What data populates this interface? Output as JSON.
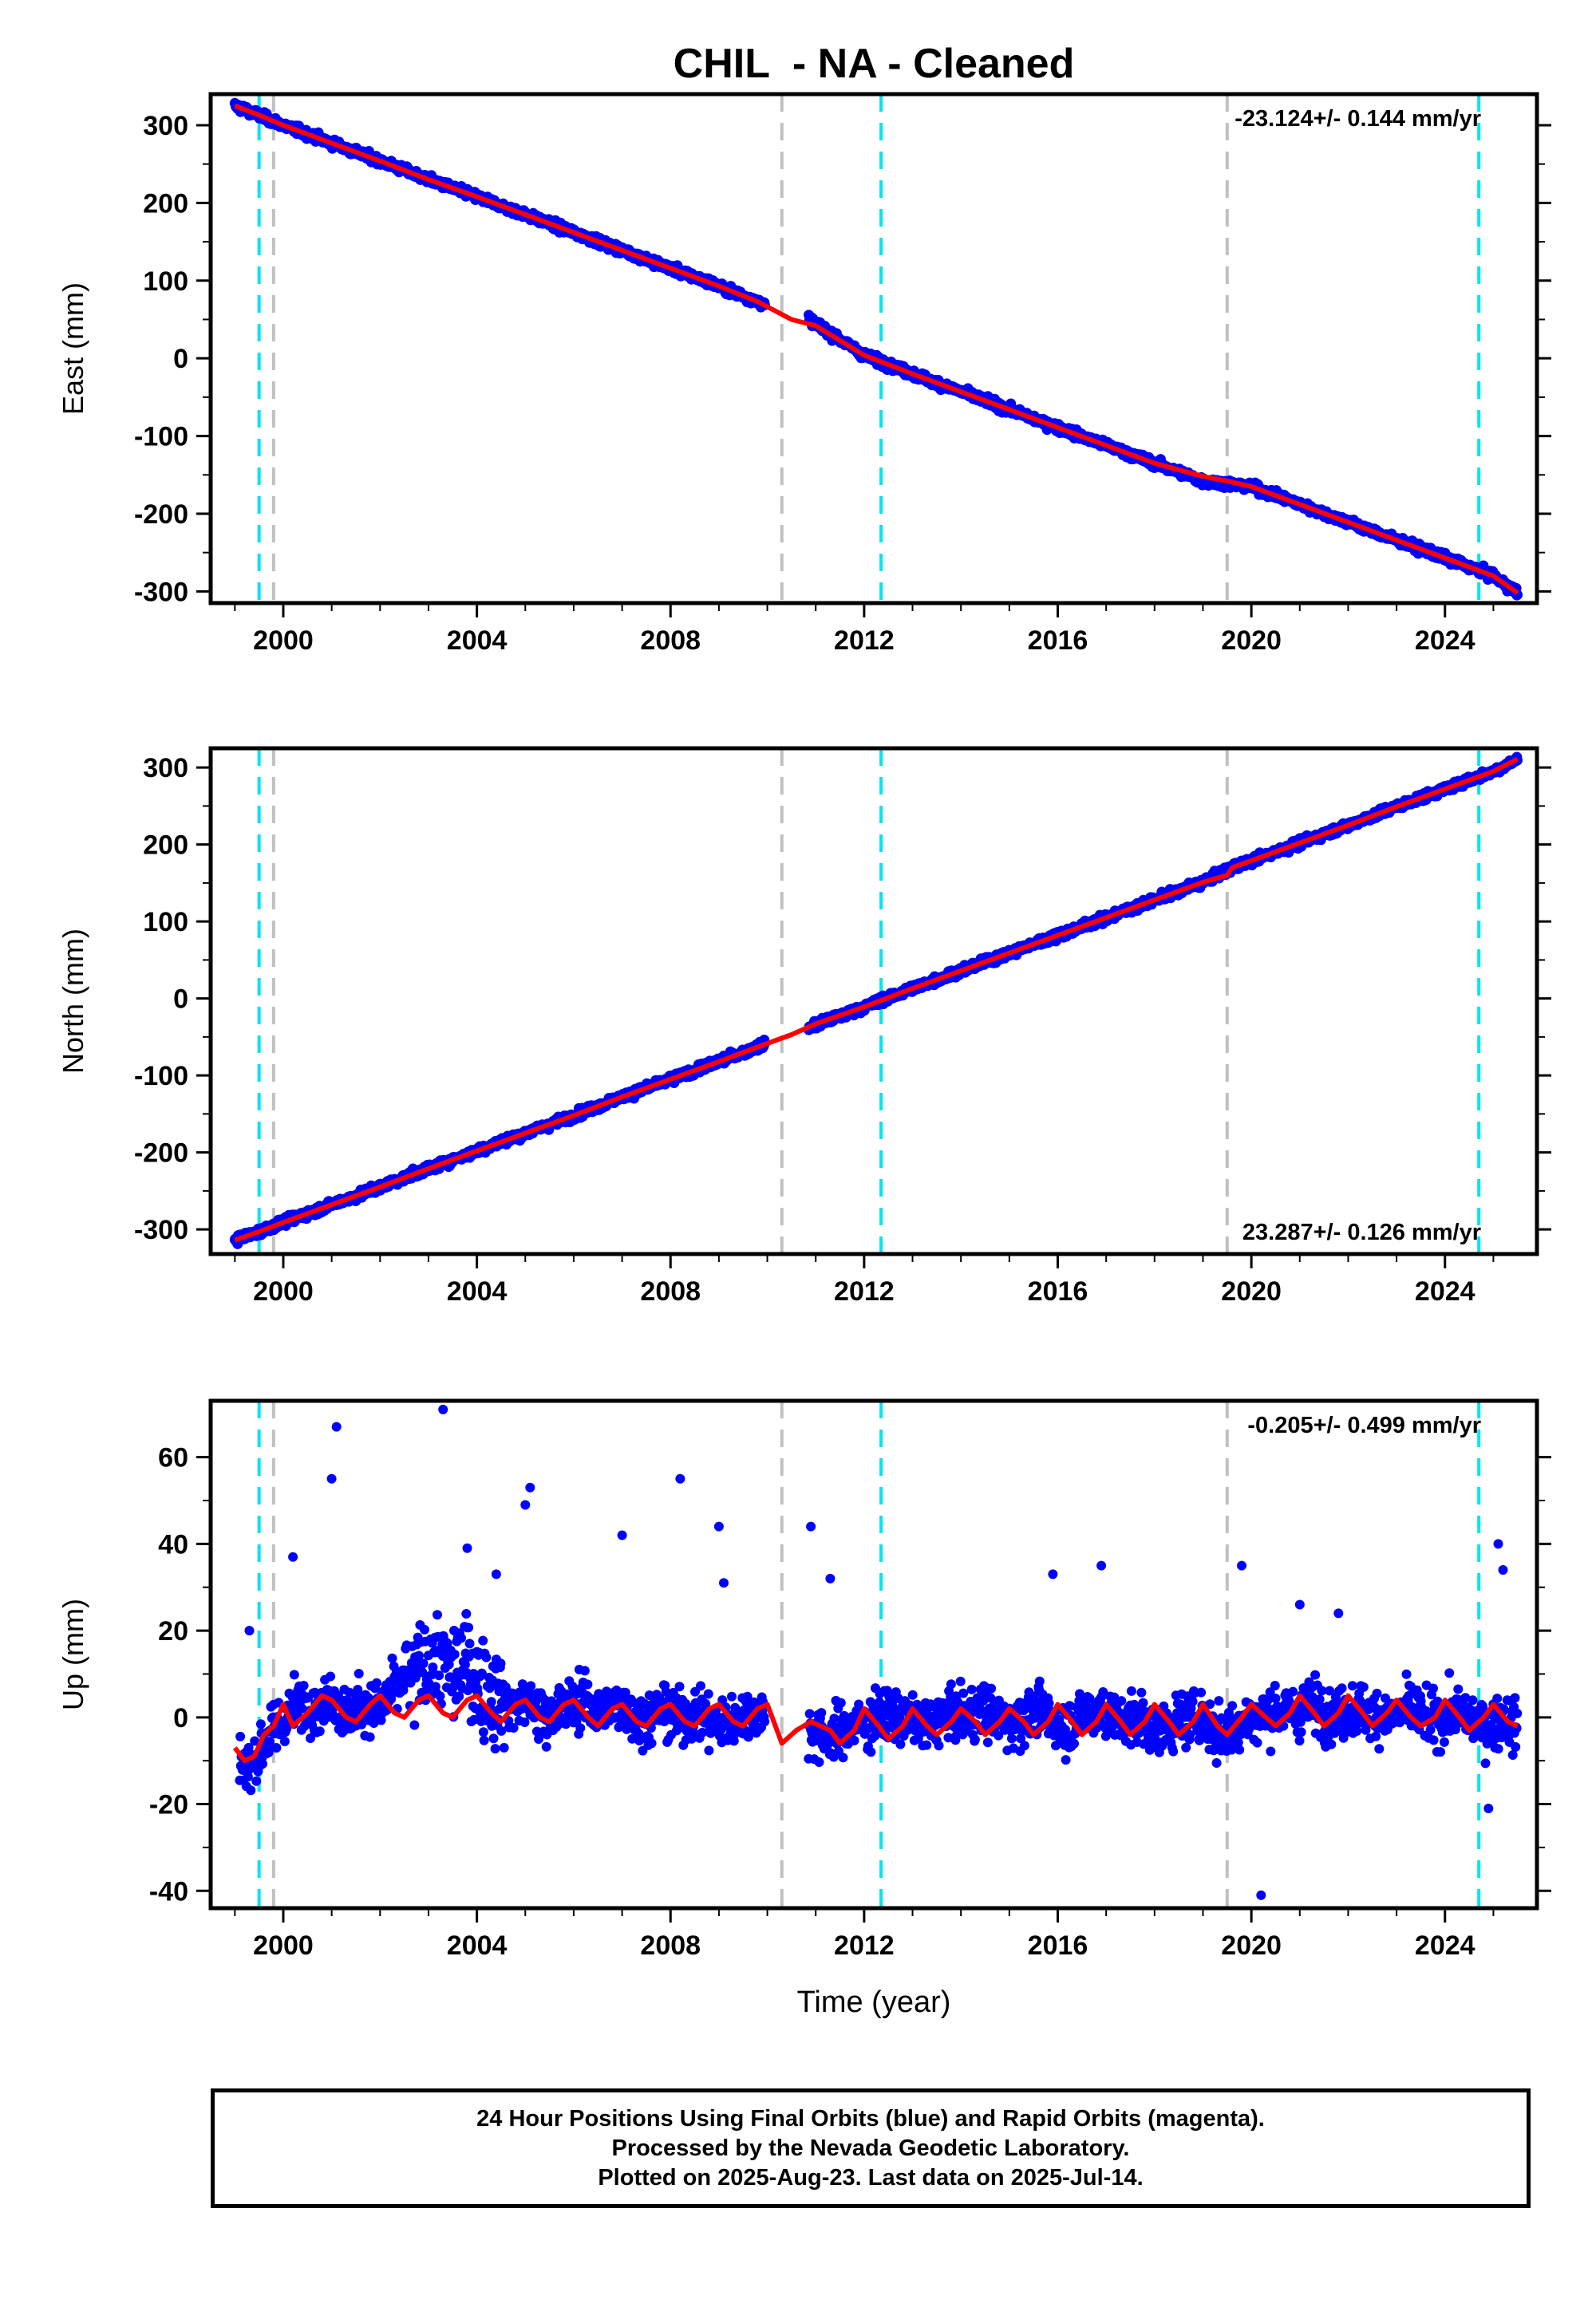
{
  "title": "CHIL  - NA - Cleaned",
  "xlabel": "Time (year)",
  "x_ticks": [
    "2000",
    "2004",
    "2008",
    "2012",
    "2016",
    "2020",
    "2024"
  ],
  "colors": {
    "final_orbits": "#0000ff",
    "model": "#ff0000",
    "antenna_change": "#00e5ee",
    "equipment_change": "#c0c0c0"
  },
  "footer": {
    "line1": "24 Hour Positions Using Final Orbits (blue) and Rapid Orbits (magenta).",
    "line2": "Processed by the Nevada Geodetic Laboratory.",
    "line3": "Plotted on 2025-Aug-23. Last data on 2025-Jul-14."
  },
  "chart_data": [
    {
      "type": "scatter",
      "id": "east",
      "ylabel": "East (mm)",
      "rate_label": "-23.124+/- 0.144 mm/yr",
      "rate_position": "top-right",
      "xlim": [
        1998.5,
        2025.9
      ],
      "ylim": [
        -315,
        340
      ],
      "y_ticks": [
        300,
        200,
        100,
        0,
        -100,
        -200,
        -300
      ],
      "x_ticks": [
        2000,
        2004,
        2008,
        2012,
        2016,
        2020,
        2024
      ],
      "series": [
        {
          "kind": "positions",
          "color": "#0000ff",
          "x": [
            1999.0,
            1999.5,
            2000.0,
            2001.0,
            2002.0,
            2003.0,
            2004.0,
            2005.0,
            2006.0,
            2007.0,
            2008.0,
            2009.0,
            2009.8,
            2010.9,
            2012.0,
            2013.0,
            2014.0,
            2015.0,
            2016.0,
            2017.0,
            2018.0,
            2019.0,
            2020.0,
            2021.0,
            2022.0,
            2023.0,
            2024.0,
            2025.0,
            2025.5
          ],
          "y": [
            325,
            313,
            300,
            277,
            254,
            230,
            208,
            185,
            162,
            139,
            116,
            93,
            73,
            49,
            4,
            -20,
            -43,
            -66,
            -89,
            -112,
            -135,
            -158,
            -165,
            -188,
            -211,
            -234,
            -257,
            -280,
            -302
          ]
        },
        {
          "kind": "model",
          "color": "#ff0000",
          "x": [
            1999.0,
            1999.5,
            2000.0,
            2001.0,
            2002.0,
            2003.0,
            2004.0,
            2005.0,
            2006.0,
            2007.0,
            2008.0,
            2009.0,
            2009.8,
            2010.5,
            2011.0,
            2012.0,
            2013.0,
            2014.0,
            2015.0,
            2016.0,
            2017.0,
            2018.0,
            2019.0,
            2019.5,
            2020.0,
            2021.0,
            2022.0,
            2023.0,
            2024.0,
            2025.0,
            2025.5
          ],
          "y": [
            325,
            313,
            300,
            277,
            254,
            230,
            208,
            185,
            162,
            139,
            116,
            93,
            73,
            50,
            42,
            4,
            -20,
            -43,
            -66,
            -89,
            -112,
            -135,
            -152,
            -158,
            -165,
            -188,
            -211,
            -234,
            -257,
            -280,
            -302
          ]
        }
      ],
      "antenna_changes": [
        1999.5,
        2012.35,
        2024.7
      ],
      "equipment_changes": [
        1999.8,
        2010.3,
        2019.5
      ]
    },
    {
      "type": "scatter",
      "id": "north",
      "ylabel": "North (mm)",
      "rate_label": "23.287+/- 0.126 mm/yr",
      "rate_position": "bottom-right",
      "xlim": [
        1998.5,
        2025.9
      ],
      "ylim": [
        -332,
        325
      ],
      "y_ticks": [
        300,
        200,
        100,
        0,
        -100,
        -200,
        -300
      ],
      "x_ticks": [
        2000,
        2004,
        2008,
        2012,
        2016,
        2020,
        2024
      ],
      "series": [
        {
          "kind": "positions",
          "color": "#0000ff",
          "x": [
            1999.0,
            1999.5,
            2000.0,
            2001.0,
            2002.0,
            2003.0,
            2004.0,
            2005.0,
            2006.0,
            2007.0,
            2008.0,
            2009.0,
            2009.8,
            2010.9,
            2012.0,
            2013.0,
            2014.0,
            2015.0,
            2016.0,
            2017.0,
            2018.0,
            2019.0,
            2019.6,
            2020.0,
            2021.0,
            2022.0,
            2023.0,
            2024.0,
            2025.0,
            2025.5
          ],
          "y": [
            -314,
            -303,
            -291,
            -268,
            -245,
            -221,
            -198,
            -175,
            -152,
            -128,
            -105,
            -82,
            -63,
            -37,
            -11,
            13,
            36,
            59,
            82,
            105,
            128,
            151,
            170,
            179,
            202,
            225,
            249,
            272,
            295,
            311
          ]
        },
        {
          "kind": "model",
          "color": "#ff0000",
          "x": [
            1999.0,
            1999.5,
            2000.0,
            2001.0,
            2002.0,
            2003.0,
            2004.0,
            2005.0,
            2006.0,
            2007.0,
            2008.0,
            2009.0,
            2009.8,
            2010.5,
            2011.0,
            2012.0,
            2013.0,
            2014.0,
            2015.0,
            2016.0,
            2017.0,
            2018.0,
            2019.0,
            2019.5,
            2019.6,
            2020.0,
            2021.0,
            2022.0,
            2023.0,
            2024.0,
            2025.0,
            2025.5
          ],
          "y": [
            -314,
            -303,
            -291,
            -268,
            -245,
            -221,
            -198,
            -175,
            -152,
            -128,
            -105,
            -82,
            -63,
            -47,
            -33,
            -11,
            13,
            36,
            59,
            82,
            105,
            128,
            151,
            160,
            170,
            179,
            202,
            225,
            249,
            272,
            295,
            311
          ]
        }
      ],
      "antenna_changes": [
        1999.5,
        2012.35,
        2024.7
      ],
      "equipment_changes": [
        1999.8,
        2010.3,
        2019.5
      ]
    },
    {
      "type": "scatter",
      "id": "up",
      "ylabel": "Up (mm)",
      "rate_label": "-0.205+/- 0.499 mm/yr",
      "rate_position": "top-right",
      "xlim": [
        1998.5,
        2025.9
      ],
      "ylim": [
        -44,
        73
      ],
      "y_ticks": [
        60,
        40,
        20,
        0,
        -20,
        -40
      ],
      "x_ticks": [
        2000,
        2004,
        2008,
        2012,
        2016,
        2020,
        2024
      ],
      "series": [
        {
          "kind": "positions",
          "color": "#0000ff",
          "x": [
            1999.1,
            1999.3,
            1999.6,
            1999.9,
            2000.1,
            2000.4,
            2000.8,
            2001.0,
            2001.3,
            2001.6,
            2002.0,
            2002.3,
            2002.7,
            2003.0,
            2003.2,
            2003.5,
            2003.8,
            2004.0,
            2004.3,
            2004.7,
            2005.0,
            2005.4,
            2005.8,
            2006.2,
            2006.6,
            2007.0,
            2007.4,
            2007.8,
            2008.2,
            2008.6,
            2009.0,
            2009.4,
            2009.8,
            2010.9,
            2011.3,
            2011.7,
            2012.1,
            2012.5,
            2012.9,
            2013.3,
            2013.7,
            2014.1,
            2014.5,
            2014.9,
            2015.3,
            2015.7,
            2016.1,
            2016.5,
            2016.9,
            2017.3,
            2017.7,
            2018.1,
            2018.5,
            2018.9,
            2019.3,
            2019.7,
            2020.1,
            2020.5,
            2020.9,
            2021.3,
            2021.7,
            2022.1,
            2022.5,
            2022.9,
            2023.3,
            2023.7,
            2024.1,
            2024.5,
            2024.9,
            2025.2,
            2025.5
          ],
          "y": [
            -9,
            -12,
            -6,
            -2,
            1,
            4,
            2,
            6,
            0,
            3,
            2,
            7,
            9,
            12,
            14,
            10,
            13,
            8,
            5,
            3,
            4,
            0,
            2,
            4,
            1,
            3,
            -1,
            2,
            0,
            1,
            -2,
            0,
            1,
            -3,
            -5,
            -2,
            -1,
            1,
            0,
            -2,
            1,
            0,
            2,
            -1,
            0,
            1,
            -2,
            0,
            2,
            -1,
            0,
            -3,
            -1,
            1,
            -4,
            -2,
            0,
            2,
            1,
            3,
            0,
            2,
            1,
            0,
            2,
            -1,
            1,
            0,
            -2,
            0,
            -3
          ]
        },
        {
          "kind": "model",
          "color": "#ff0000",
          "x": [
            1999.0,
            1999.2,
            1999.4,
            1999.6,
            1999.8,
            2000.0,
            2000.2,
            2000.5,
            2000.8,
            2001.0,
            2001.3,
            2001.5,
            2001.8,
            2002.0,
            2002.3,
            2002.5,
            2002.8,
            2003.0,
            2003.3,
            2003.5,
            2003.8,
            2004.0,
            2004.3,
            2004.5,
            2004.8,
            2005.0,
            2005.3,
            2005.5,
            2005.8,
            2006.0,
            2006.3,
            2006.5,
            2006.8,
            2007.0,
            2007.3,
            2007.5,
            2007.8,
            2008.0,
            2008.3,
            2008.5,
            2008.8,
            2009.0,
            2009.3,
            2009.5,
            2009.8,
            2010.0,
            2010.3,
            2010.6,
            2010.9,
            2011.3,
            2011.5,
            2011.8,
            2012.0,
            2012.3,
            2012.5,
            2012.8,
            2013.0,
            2013.3,
            2013.5,
            2013.8,
            2014.0,
            2014.3,
            2014.5,
            2014.8,
            2015.0,
            2015.3,
            2015.5,
            2015.8,
            2016.0,
            2016.3,
            2016.5,
            2016.8,
            2017.0,
            2017.3,
            2017.5,
            2017.8,
            2018.0,
            2018.3,
            2018.5,
            2018.8,
            2019.0,
            2019.3,
            2019.5,
            2019.8,
            2020.0,
            2020.3,
            2020.5,
            2020.8,
            2021.0,
            2021.3,
            2021.5,
            2021.8,
            2022.0,
            2022.3,
            2022.5,
            2022.8,
            2023.0,
            2023.3,
            2023.5,
            2023.8,
            2024.0,
            2024.3,
            2024.5,
            2024.8,
            2025.0,
            2025.3,
            2025.5
          ],
          "y": [
            -7,
            -10,
            -9,
            -4,
            -2,
            3,
            -2,
            1,
            5,
            4,
            0,
            -1,
            3,
            5,
            1,
            0,
            4,
            5,
            1,
            0,
            4,
            5,
            1,
            -1,
            3,
            4,
            0,
            -1,
            3,
            4,
            0,
            -2,
            2,
            3,
            -1,
            -2,
            2,
            3,
            -1,
            -2,
            2,
            3,
            -1,
            -2,
            2,
            3,
            -6,
            -3,
            -1,
            -3,
            -6,
            -3,
            2,
            -2,
            -5,
            -2,
            2,
            -2,
            -4,
            -1,
            2,
            -1,
            -4,
            -1,
            2,
            -1,
            -4,
            -1,
            3,
            -1,
            -4,
            -1,
            3,
            -1,
            -4,
            -1,
            3,
            -1,
            -4,
            -1,
            3,
            -2,
            -4,
            0,
            3,
            0,
            -2,
            1,
            5,
            1,
            -2,
            1,
            5,
            1,
            -2,
            1,
            4,
            0,
            -2,
            0,
            4,
            0,
            -3,
            0,
            3,
            -1,
            -2
          ]
        }
      ],
      "outliers": {
        "x": [
          1999.3,
          2000.2,
          2001.1,
          2001.0,
          2003.3,
          2003.8,
          2004.4,
          2005.0,
          2005.1,
          2007.0,
          2008.2,
          2009.0,
          2009.1,
          2010.9,
          2011.3,
          2015.9,
          2016.9,
          2019.8,
          2020.2,
          2021.0,
          2021.8,
          2024.9,
          2025.1,
          2025.2
        ],
        "y": [
          20,
          37,
          67,
          55,
          71,
          39,
          33,
          49,
          53,
          42,
          55,
          44,
          31,
          44,
          32,
          33,
          35,
          35,
          -41,
          26,
          24,
          -21,
          40,
          34
        ]
      },
      "antenna_changes": [
        1999.5,
        2012.35,
        2024.7
      ],
      "equipment_changes": [
        1999.8,
        2010.3,
        2019.5
      ]
    }
  ]
}
